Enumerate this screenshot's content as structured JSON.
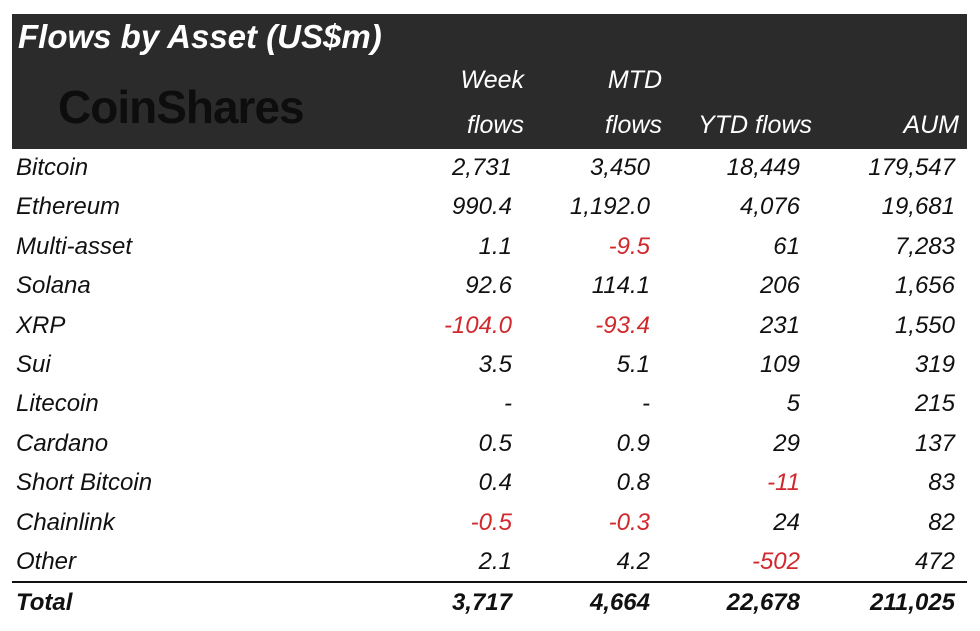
{
  "title": "Flows by Asset (US$m)",
  "logo": "CoinShares",
  "columns": [
    {
      "line1": "Week",
      "line2": "flows"
    },
    {
      "line1": "MTD",
      "line2": "flows"
    },
    {
      "line1": "",
      "line2": "YTD flows"
    },
    {
      "line1": "",
      "line2": "AUM"
    }
  ],
  "negative_color": "#d0282d",
  "header_color": "#2b2b2b",
  "chart_data": {
    "type": "table",
    "title": "Flows by Asset (US$m)",
    "columns": [
      "Week flows",
      "MTD flows",
      "YTD flows",
      "AUM"
    ],
    "rows": [
      {
        "asset": "Bitcoin",
        "values": [
          "2,731",
          "3,450",
          "18,449",
          "179,547"
        ]
      },
      {
        "asset": "Ethereum",
        "values": [
          "990.4",
          "1,192.0",
          "4,076",
          "19,681"
        ]
      },
      {
        "asset": "Multi-asset",
        "values": [
          "1.1",
          "-9.5",
          "61",
          "7,283"
        ]
      },
      {
        "asset": "Solana",
        "values": [
          "92.6",
          "114.1",
          "206",
          "1,656"
        ]
      },
      {
        "asset": "XRP",
        "values": [
          "-104.0",
          "-93.4",
          "231",
          "1,550"
        ]
      },
      {
        "asset": "Sui",
        "values": [
          "3.5",
          "5.1",
          "109",
          "319"
        ]
      },
      {
        "asset": "Litecoin",
        "values": [
          "-",
          "-",
          "5",
          "215"
        ]
      },
      {
        "asset": "Cardano",
        "values": [
          "0.5",
          "0.9",
          "29",
          "137"
        ]
      },
      {
        "asset": "Short Bitcoin",
        "values": [
          "0.4",
          "0.8",
          "-11",
          "83"
        ]
      },
      {
        "asset": "Chainlink",
        "values": [
          "-0.5",
          "-0.3",
          "24",
          "82"
        ]
      },
      {
        "asset": "Other",
        "values": [
          "2.1",
          "4.2",
          "-502",
          "472"
        ]
      }
    ],
    "total": {
      "asset": "Total",
      "values": [
        "3,717",
        "4,664",
        "22,678",
        "211,025"
      ]
    }
  }
}
